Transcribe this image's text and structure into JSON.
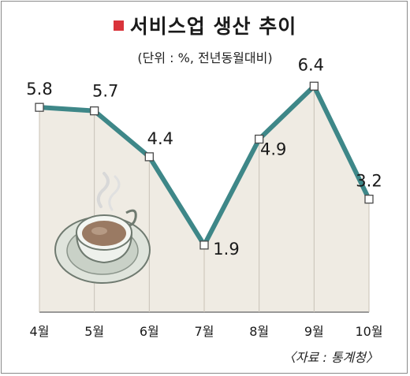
{
  "chart_data": {
    "type": "line",
    "title": "서비스업 생산 추이",
    "subtitle": "(단위 : %, 전년동월대비)",
    "source": "〈자료 : 통계청〉",
    "categories": [
      "4월",
      "5월",
      "6월",
      "7월",
      "8월",
      "9월",
      "10월"
    ],
    "values": [
      5.8,
      5.7,
      4.4,
      1.9,
      4.9,
      6.4,
      3.2
    ],
    "value_labels": [
      "5.8",
      "5.7",
      "4.4",
      "1.9",
      "4.9",
      "6.4",
      "3.2"
    ],
    "ylim": [
      0,
      7.5
    ],
    "grid": false,
    "colors": {
      "line": "#3e8788",
      "fill": "#efebe3",
      "title_mark": "#d9343b"
    }
  },
  "illustration": {
    "icon": "coffee-cup-icon"
  }
}
